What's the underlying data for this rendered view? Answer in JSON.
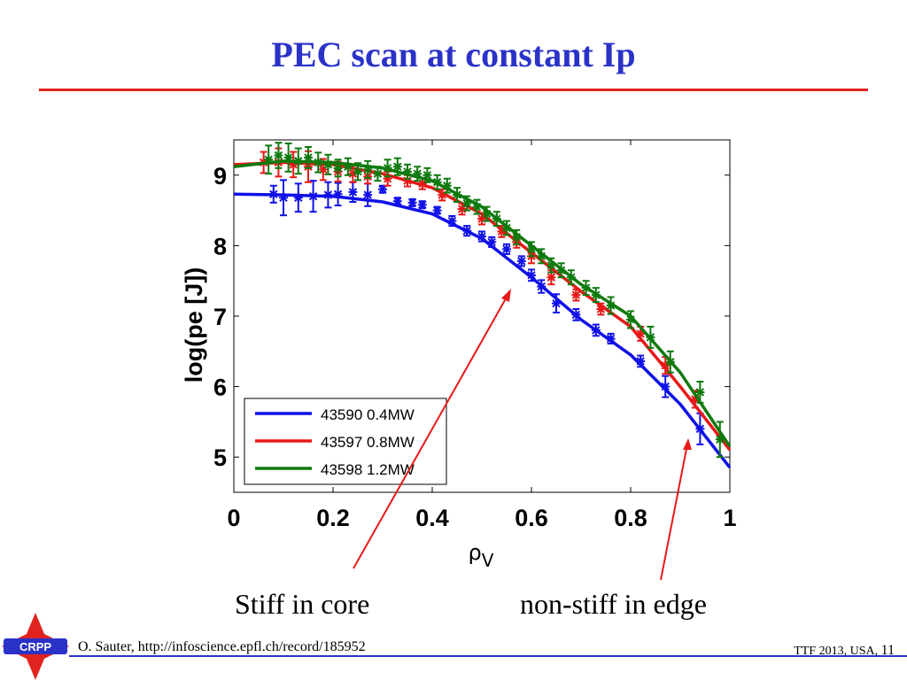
{
  "slide": {
    "title": "PEC scan at constant Ip",
    "annotation_core": "Stiff in core",
    "annotation_edge": "non-stiff in edge",
    "footer_left": "O. Sauter, http://infoscience.epfl.ch/record/185952",
    "footer_right": "TTF 2013, USA,",
    "page_number": "11",
    "logo_text": "CRPP",
    "colors": {
      "title": "#2b32c8",
      "rule": "#e0231e",
      "footer_rule": "#2b32c8",
      "logo": "#e0231e"
    }
  },
  "chart_data": {
    "type": "line",
    "xlabel_main": "ρ",
    "xlabel_sub": "V",
    "ylabel": "log(pe [J])",
    "xlim": [
      0,
      1
    ],
    "ylim": [
      4.5,
      9.5
    ],
    "xticks": [
      "0",
      "0.2",
      "0.4",
      "0.6",
      "0.8",
      "1"
    ],
    "xtick_values": [
      0,
      0.2,
      0.4,
      0.6,
      0.8,
      1
    ],
    "yticks": [
      "5",
      "6",
      "7",
      "8",
      "9"
    ],
    "ytick_values": [
      5,
      6,
      7,
      8,
      9
    ],
    "grid": false,
    "legend_position": "bottom-left",
    "series": [
      {
        "name": "43590 0.4MW",
        "color": "#1010e8",
        "fit_x": [
          0,
          0.1,
          0.2,
          0.3,
          0.4,
          0.5,
          0.6,
          0.7,
          0.8,
          0.9,
          1.0
        ],
        "fit_y": [
          8.73,
          8.72,
          8.7,
          8.62,
          8.45,
          8.1,
          7.55,
          6.95,
          6.45,
          5.75,
          4.85
        ],
        "points": [
          {
            "x": 0.08,
            "y": 8.73,
            "e": 0.12
          },
          {
            "x": 0.1,
            "y": 8.68,
            "e": 0.25
          },
          {
            "x": 0.13,
            "y": 8.68,
            "e": 0.2
          },
          {
            "x": 0.16,
            "y": 8.7,
            "e": 0.22
          },
          {
            "x": 0.19,
            "y": 8.72,
            "e": 0.18
          },
          {
            "x": 0.21,
            "y": 8.73,
            "e": 0.16
          },
          {
            "x": 0.24,
            "y": 8.76,
            "e": 0.14
          },
          {
            "x": 0.27,
            "y": 8.72,
            "e": 0.16
          },
          {
            "x": 0.3,
            "y": 8.8,
            "e": 0.05
          },
          {
            "x": 0.33,
            "y": 8.63,
            "e": 0.05
          },
          {
            "x": 0.36,
            "y": 8.61,
            "e": 0.05
          },
          {
            "x": 0.38,
            "y": 8.58,
            "e": 0.05
          },
          {
            "x": 0.41,
            "y": 8.5,
            "e": 0.05
          },
          {
            "x": 0.44,
            "y": 8.35,
            "e": 0.07
          },
          {
            "x": 0.47,
            "y": 8.21,
            "e": 0.07
          },
          {
            "x": 0.5,
            "y": 8.13,
            "e": 0.07
          },
          {
            "x": 0.52,
            "y": 8.05,
            "e": 0.07
          },
          {
            "x": 0.55,
            "y": 7.95,
            "e": 0.07
          },
          {
            "x": 0.58,
            "y": 7.78,
            "e": 0.07
          },
          {
            "x": 0.6,
            "y": 7.58,
            "e": 0.08
          },
          {
            "x": 0.62,
            "y": 7.42,
            "e": 0.09
          },
          {
            "x": 0.65,
            "y": 7.18,
            "e": 0.13
          },
          {
            "x": 0.69,
            "y": 7.02,
            "e": 0.08
          },
          {
            "x": 0.73,
            "y": 6.8,
            "e": 0.08
          },
          {
            "x": 0.76,
            "y": 6.68,
            "e": 0.07
          },
          {
            "x": 0.82,
            "y": 6.36,
            "e": 0.08
          },
          {
            "x": 0.87,
            "y": 6.0,
            "e": 0.15
          },
          {
            "x": 0.94,
            "y": 5.4,
            "e": 0.22
          }
        ]
      },
      {
        "name": "43597 0.8MW",
        "color": "#e81818",
        "fit_x": [
          0,
          0.1,
          0.2,
          0.3,
          0.4,
          0.5,
          0.6,
          0.7,
          0.8,
          0.9,
          1.0
        ],
        "fit_y": [
          9.15,
          9.18,
          9.15,
          9.02,
          8.82,
          8.45,
          7.9,
          7.35,
          6.85,
          6.0,
          5.1
        ],
        "points": [
          {
            "x": 0.06,
            "y": 9.18,
            "e": 0.15
          },
          {
            "x": 0.09,
            "y": 9.18,
            "e": 0.2
          },
          {
            "x": 0.12,
            "y": 9.15,
            "e": 0.18
          },
          {
            "x": 0.15,
            "y": 9.12,
            "e": 0.22
          },
          {
            "x": 0.18,
            "y": 9.08,
            "e": 0.15
          },
          {
            "x": 0.21,
            "y": 9.05,
            "e": 0.14
          },
          {
            "x": 0.24,
            "y": 9.02,
            "e": 0.12
          },
          {
            "x": 0.27,
            "y": 8.98,
            "e": 0.1
          },
          {
            "x": 0.31,
            "y": 8.95,
            "e": 0.1
          },
          {
            "x": 0.35,
            "y": 8.92,
            "e": 0.08
          },
          {
            "x": 0.38,
            "y": 8.88,
            "e": 0.08
          },
          {
            "x": 0.42,
            "y": 8.72,
            "e": 0.08
          },
          {
            "x": 0.46,
            "y": 8.52,
            "e": 0.08
          },
          {
            "x": 0.5,
            "y": 8.38,
            "e": 0.08
          },
          {
            "x": 0.54,
            "y": 8.2,
            "e": 0.08
          },
          {
            "x": 0.57,
            "y": 8.05,
            "e": 0.08
          },
          {
            "x": 0.6,
            "y": 7.85,
            "e": 0.1
          },
          {
            "x": 0.64,
            "y": 7.55,
            "e": 0.1
          },
          {
            "x": 0.69,
            "y": 7.3,
            "e": 0.08
          },
          {
            "x": 0.74,
            "y": 7.1,
            "e": 0.08
          },
          {
            "x": 0.82,
            "y": 6.75,
            "e": 0.1
          },
          {
            "x": 0.87,
            "y": 6.3,
            "e": 0.12
          },
          {
            "x": 0.93,
            "y": 5.82,
            "e": 0.12
          }
        ]
      },
      {
        "name": "43598 1.2MW",
        "color": "#0e7a0e",
        "fit_x": [
          0,
          0.1,
          0.2,
          0.3,
          0.4,
          0.5,
          0.6,
          0.7,
          0.8,
          0.9,
          1.0
        ],
        "fit_y": [
          9.12,
          9.2,
          9.18,
          9.1,
          8.92,
          8.55,
          8.0,
          7.45,
          7.0,
          6.2,
          5.15
        ],
        "points": [
          {
            "x": 0.07,
            "y": 9.22,
            "e": 0.2
          },
          {
            "x": 0.09,
            "y": 9.28,
            "e": 0.18
          },
          {
            "x": 0.11,
            "y": 9.25,
            "e": 0.2
          },
          {
            "x": 0.13,
            "y": 9.2,
            "e": 0.18
          },
          {
            "x": 0.15,
            "y": 9.25,
            "e": 0.15
          },
          {
            "x": 0.17,
            "y": 9.18,
            "e": 0.14
          },
          {
            "x": 0.19,
            "y": 9.15,
            "e": 0.14
          },
          {
            "x": 0.21,
            "y": 9.1,
            "e": 0.12
          },
          {
            "x": 0.23,
            "y": 9.12,
            "e": 0.12
          },
          {
            "x": 0.25,
            "y": 9.05,
            "e": 0.12
          },
          {
            "x": 0.27,
            "y": 9.08,
            "e": 0.12
          },
          {
            "x": 0.29,
            "y": 9.02,
            "e": 0.1
          },
          {
            "x": 0.31,
            "y": 9.1,
            "e": 0.12
          },
          {
            "x": 0.33,
            "y": 9.12,
            "e": 0.12
          },
          {
            "x": 0.35,
            "y": 9.05,
            "e": 0.1
          },
          {
            "x": 0.37,
            "y": 9.02,
            "e": 0.1
          },
          {
            "x": 0.39,
            "y": 9.0,
            "e": 0.1
          },
          {
            "x": 0.41,
            "y": 8.9,
            "e": 0.1
          },
          {
            "x": 0.43,
            "y": 8.85,
            "e": 0.1
          },
          {
            "x": 0.45,
            "y": 8.72,
            "e": 0.1
          },
          {
            "x": 0.47,
            "y": 8.6,
            "e": 0.1
          },
          {
            "x": 0.49,
            "y": 8.55,
            "e": 0.1
          },
          {
            "x": 0.51,
            "y": 8.45,
            "e": 0.1
          },
          {
            "x": 0.53,
            "y": 8.38,
            "e": 0.1
          },
          {
            "x": 0.55,
            "y": 8.25,
            "e": 0.1
          },
          {
            "x": 0.57,
            "y": 8.12,
            "e": 0.1
          },
          {
            "x": 0.6,
            "y": 7.95,
            "e": 0.1
          },
          {
            "x": 0.62,
            "y": 7.85,
            "e": 0.1
          },
          {
            "x": 0.64,
            "y": 7.72,
            "e": 0.1
          },
          {
            "x": 0.66,
            "y": 7.65,
            "e": 0.1
          },
          {
            "x": 0.68,
            "y": 7.55,
            "e": 0.1
          },
          {
            "x": 0.71,
            "y": 7.4,
            "e": 0.1
          },
          {
            "x": 0.73,
            "y": 7.3,
            "e": 0.1
          },
          {
            "x": 0.76,
            "y": 7.15,
            "e": 0.12
          },
          {
            "x": 0.8,
            "y": 6.95,
            "e": 0.12
          },
          {
            "x": 0.84,
            "y": 6.7,
            "e": 0.15
          },
          {
            "x": 0.88,
            "y": 6.35,
            "e": 0.15
          },
          {
            "x": 0.94,
            "y": 5.92,
            "e": 0.15
          },
          {
            "x": 0.98,
            "y": 5.25,
            "e": 0.25
          }
        ]
      }
    ]
  }
}
